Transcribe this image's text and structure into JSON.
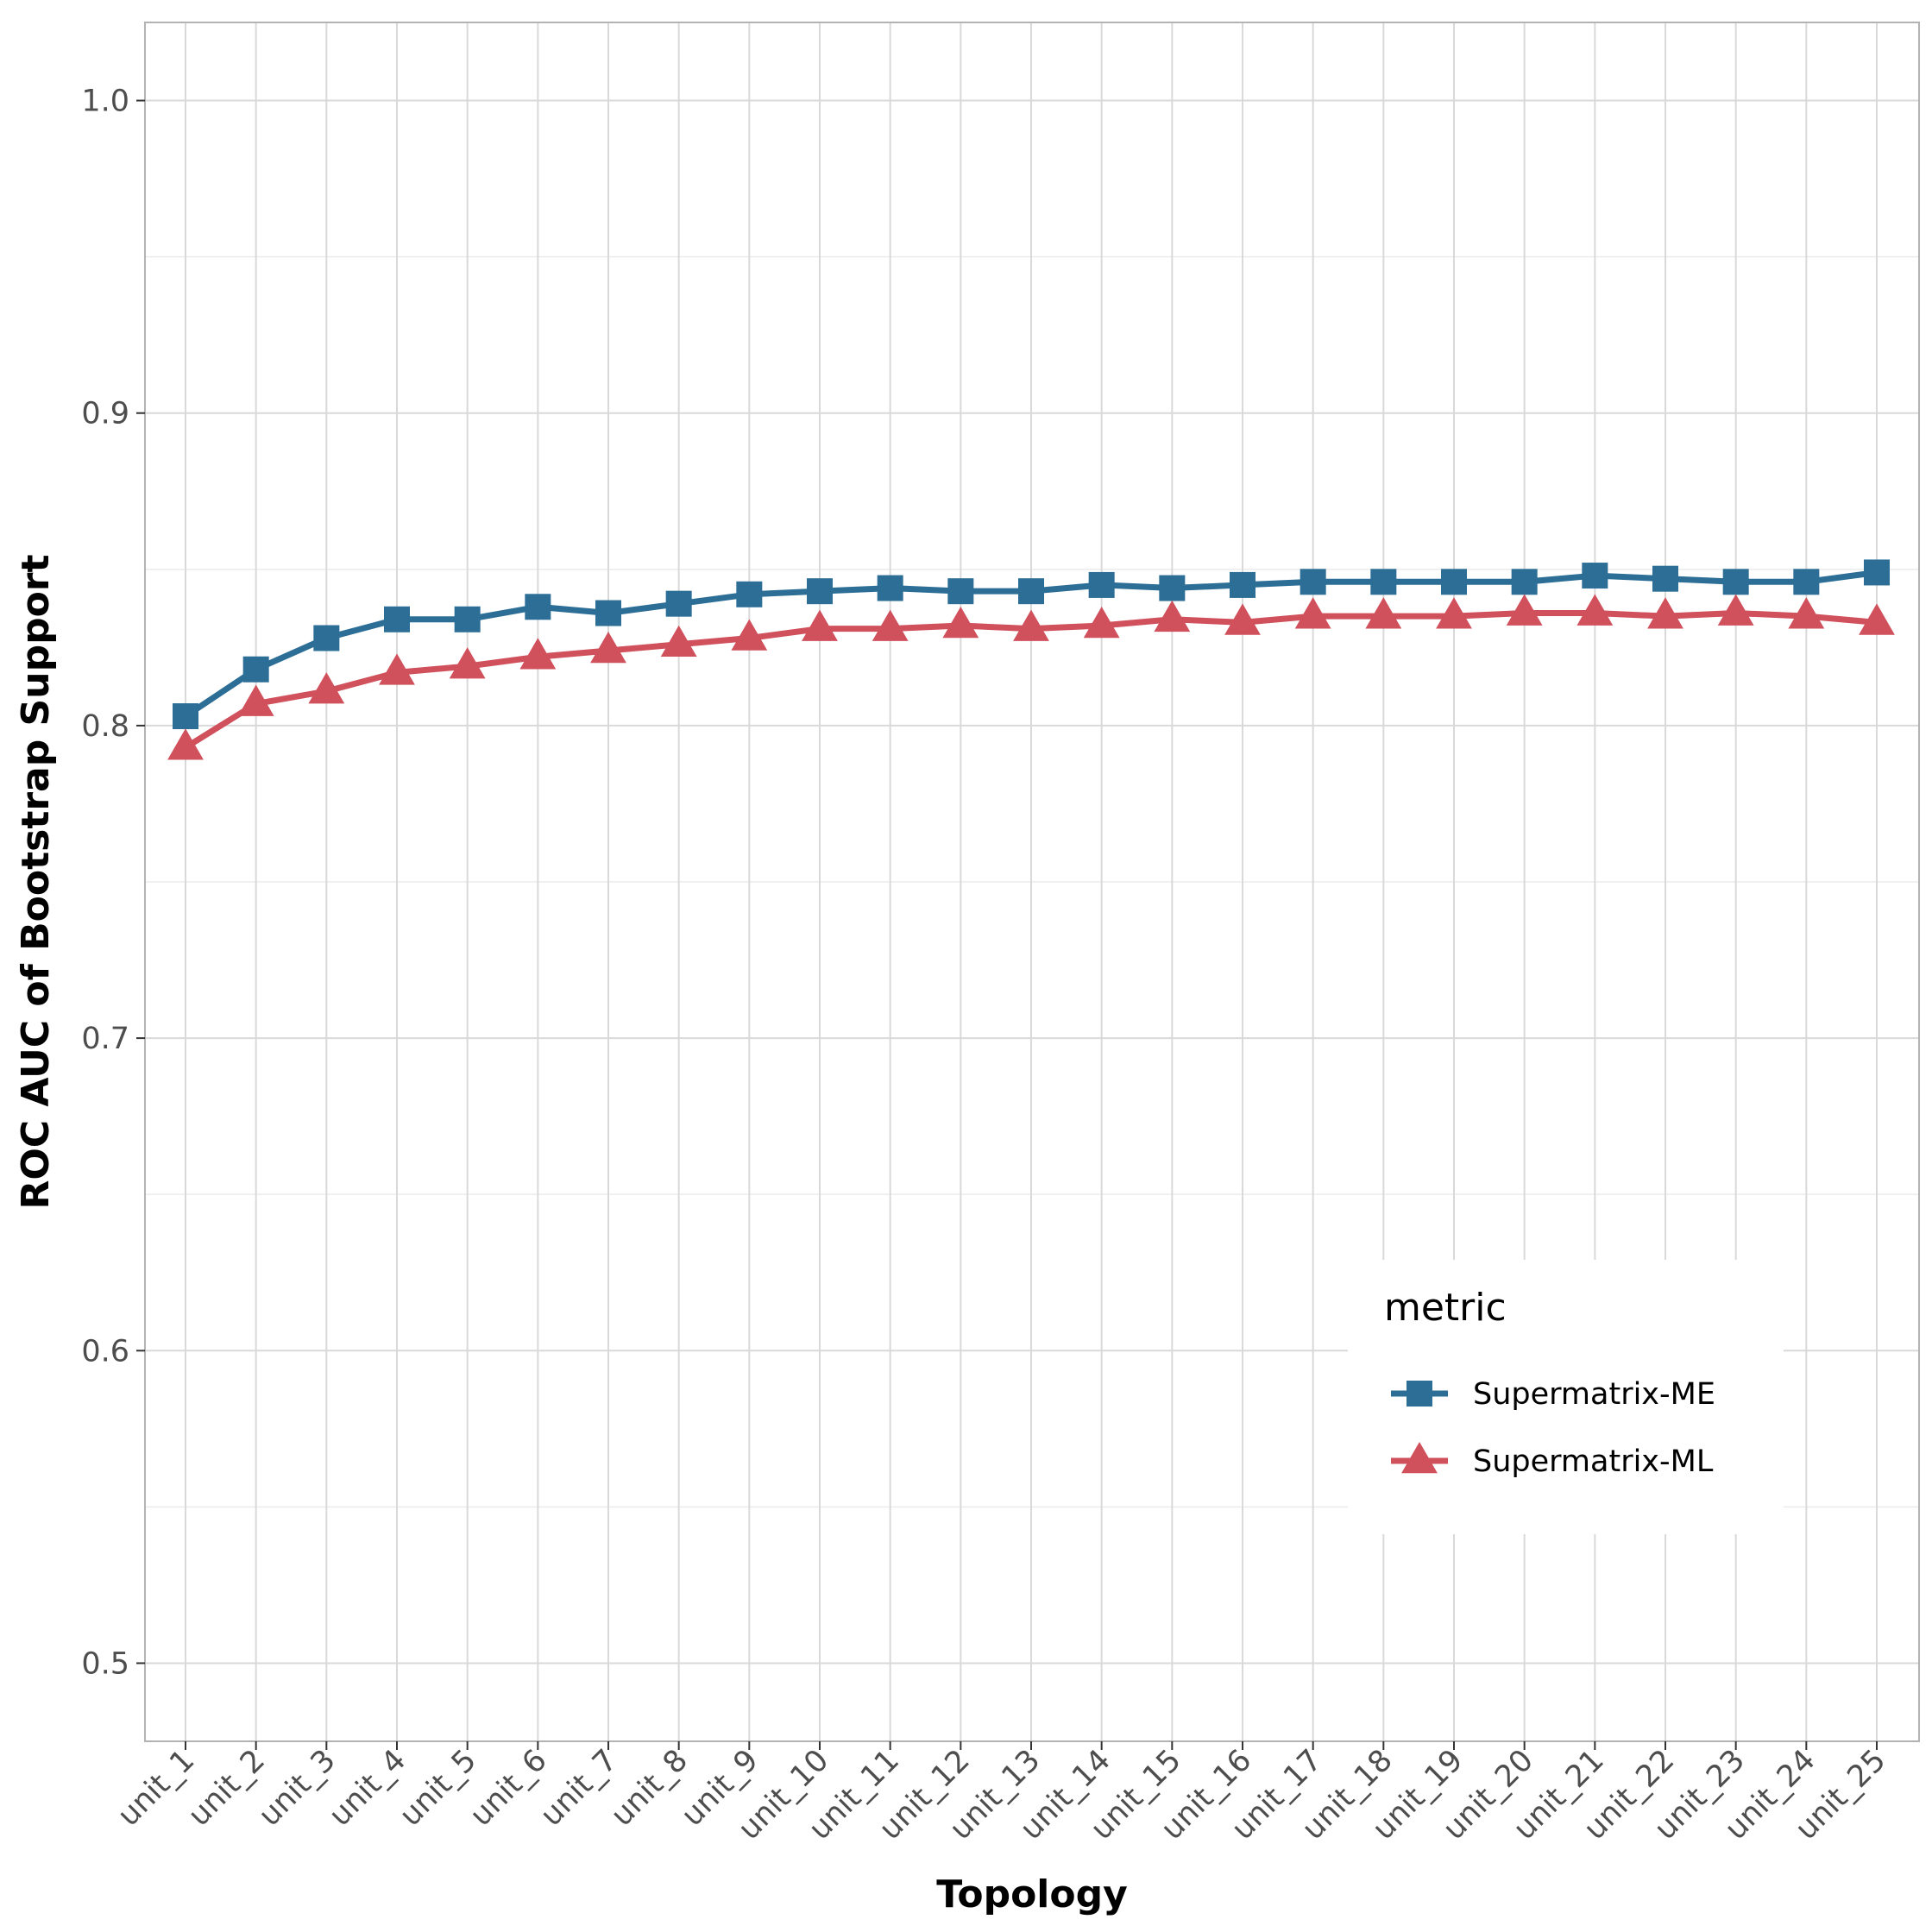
{
  "chart_data": {
    "type": "line",
    "title": "",
    "xlabel": "Topology",
    "ylabel": "ROC AUC of Bootstrap Support",
    "categories": [
      "unit_1",
      "unit_2",
      "unit_3",
      "unit_4",
      "unit_5",
      "unit_6",
      "unit_7",
      "unit_8",
      "unit_9",
      "unit_10",
      "unit_11",
      "unit_12",
      "unit_13",
      "unit_14",
      "unit_15",
      "unit_16",
      "unit_17",
      "unit_18",
      "unit_19",
      "unit_20",
      "unit_21",
      "unit_22",
      "unit_23",
      "unit_24",
      "unit_25"
    ],
    "ylim": [
      0.475,
      1.025
    ],
    "yticks": [
      0.5,
      0.6,
      0.7,
      0.8,
      0.9,
      1.0
    ],
    "ytick_labels": [
      "0.5",
      "0.6",
      "0.7",
      "0.8",
      "0.9",
      "1.0"
    ],
    "grid": true,
    "legend": {
      "title": "metric",
      "placement": "right"
    },
    "series": [
      {
        "name": "Supermatrix-ME",
        "color": "#2c6e96",
        "marker": "square",
        "values": [
          0.803,
          0.818,
          0.828,
          0.834,
          0.834,
          0.838,
          0.836,
          0.839,
          0.842,
          0.843,
          0.844,
          0.843,
          0.843,
          0.845,
          0.844,
          0.845,
          0.846,
          0.846,
          0.846,
          0.846,
          0.848,
          0.847,
          0.846,
          0.846,
          0.849
        ]
      },
      {
        "name": "Supermatrix-ML",
        "color": "#d0505c",
        "marker": "triangle",
        "values": [
          0.793,
          0.807,
          0.811,
          0.817,
          0.819,
          0.822,
          0.824,
          0.826,
          0.828,
          0.831,
          0.831,
          0.832,
          0.831,
          0.832,
          0.834,
          0.833,
          0.835,
          0.835,
          0.835,
          0.836,
          0.836,
          0.835,
          0.836,
          0.835,
          0.833
        ]
      }
    ]
  }
}
